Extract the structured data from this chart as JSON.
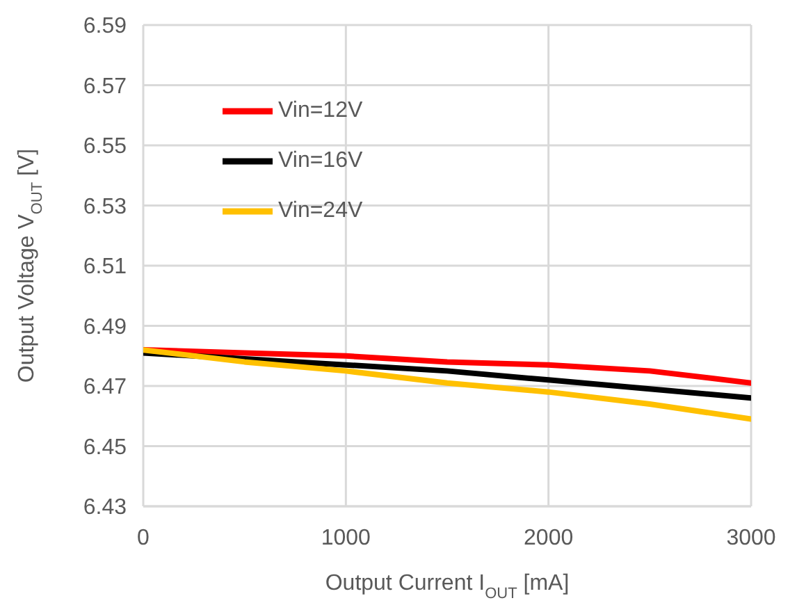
{
  "chart_data": {
    "type": "line",
    "xlabel": "Output Current I$_{OUT}$ [mA]",
    "ylabel": "Output Voltage V$_{OUT}$ [V]",
    "x": [
      0,
      500,
      1000,
      1500,
      2000,
      2500,
      3000
    ],
    "series": [
      {
        "name": "Vin=12V",
        "color": "#ff0000",
        "values": [
          6.482,
          6.481,
          6.48,
          6.478,
          6.477,
          6.475,
          6.471
        ]
      },
      {
        "name": "Vin=16V",
        "color": "#000000",
        "values": [
          6.481,
          6.479,
          6.477,
          6.475,
          6.472,
          6.469,
          6.466
        ]
      },
      {
        "name": "Vin=24V",
        "color": "#ffc000",
        "values": [
          6.482,
          6.478,
          6.475,
          6.471,
          6.468,
          6.464,
          6.459
        ]
      }
    ],
    "xlim": [
      0,
      3000
    ],
    "xticks": [
      0,
      1000,
      2000,
      3000
    ],
    "ylim": [
      6.43,
      6.59
    ],
    "yticks": [
      6.43,
      6.45,
      6.47,
      6.49,
      6.51,
      6.53,
      6.55,
      6.57,
      6.59
    ],
    "grid": true,
    "legend": "top left",
    "marker": "none",
    "line_style": "solid"
  }
}
